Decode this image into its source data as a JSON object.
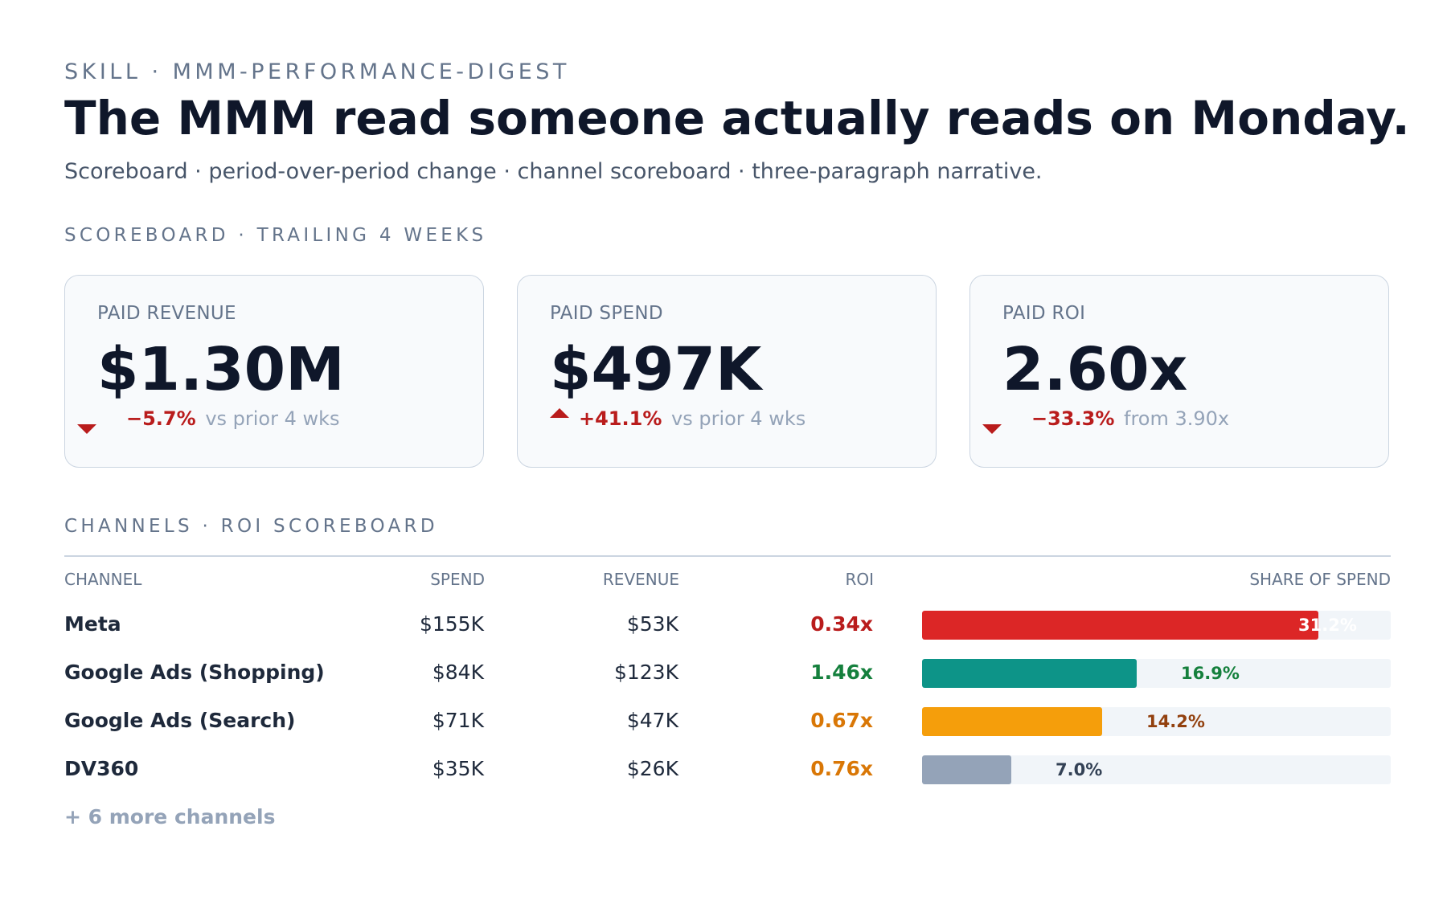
{
  "header": {
    "eyebrow": "SKILL · MMM-PERFORMANCE-DIGEST",
    "title": "The MMM read someone actually reads on Monday.",
    "subtitle": "Scoreboard · period-over-period change · channel scoreboard · three-paragraph narrative."
  },
  "scoreboard": {
    "label": "SCOREBOARD · TRAILING 4 WEEKS",
    "cards": [
      {
        "label": "PAID REVENUE",
        "value": "$1.30M",
        "direction": "down",
        "delta": "−5.7%",
        "note": "vs prior 4 wks"
      },
      {
        "label": "PAID SPEND",
        "value": "$497K",
        "direction": "up",
        "delta": "+41.1%",
        "note": "vs prior 4 wks"
      },
      {
        "label": "PAID ROI",
        "value": "2.60x",
        "direction": "down",
        "delta": "−33.3%",
        "note": "from 3.90x"
      }
    ]
  },
  "channels": {
    "label": "CHANNELS · ROI SCOREBOARD",
    "headers": {
      "channel": "CHANNEL",
      "spend": "SPEND",
      "revenue": "REVENUE",
      "roi": "ROI",
      "share": "SHARE OF SPEND"
    },
    "rows": [
      {
        "name": "Meta",
        "spend": "$155K",
        "revenue": "$53K",
        "roi": "0.34x",
        "share": "31.2%",
        "share_value": 31.2,
        "bar_color": "#dc2626",
        "roi_color": "#b91c1c",
        "label_color": "#ffffff",
        "label_inside": true
      },
      {
        "name": "Google Ads (Shopping)",
        "spend": "$84K",
        "revenue": "$123K",
        "roi": "1.46x",
        "share": "16.9%",
        "share_value": 16.9,
        "bar_color": "#0d9488",
        "roi_color": "#15803d",
        "label_color": "#15803d",
        "label_inside": false
      },
      {
        "name": "Google Ads (Search)",
        "spend": "$71K",
        "revenue": "$47K",
        "roi": "0.67x",
        "share": "14.2%",
        "share_value": 14.2,
        "bar_color": "#f59e0b",
        "roi_color": "#d97706",
        "label_color": "#92400e",
        "label_inside": false
      },
      {
        "name": "DV360",
        "spend": "$35K",
        "revenue": "$26K",
        "roi": "0.76x",
        "share": "7.0%",
        "share_value": 7.0,
        "bar_color": "#94a3b8",
        "roi_color": "#d97706",
        "label_color": "#334155",
        "label_inside": false
      }
    ],
    "more": "+ 6 more channels"
  },
  "colors": {
    "negative": "#b91c1c",
    "positive_up_arrow": "#b91c1c"
  }
}
